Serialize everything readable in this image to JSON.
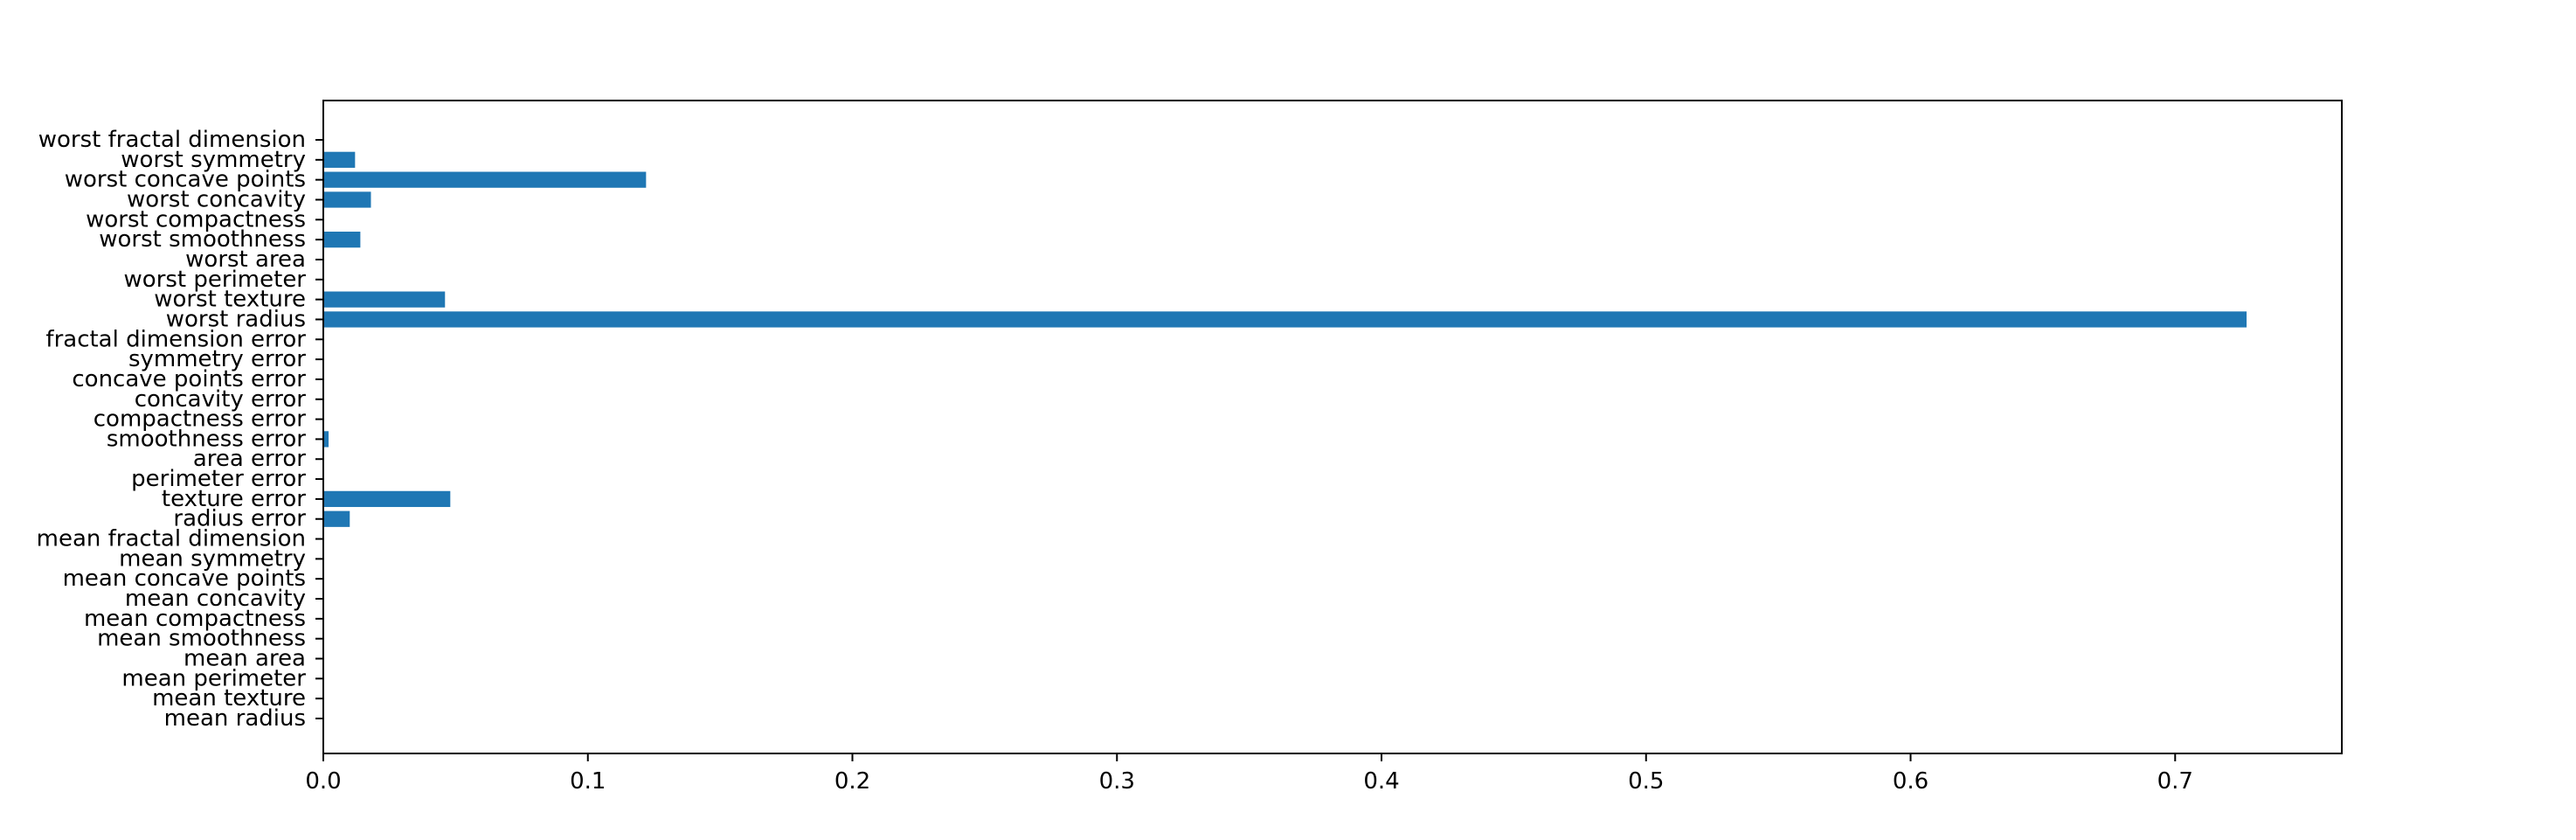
{
  "chart_data": {
    "type": "bar",
    "orientation": "horizontal",
    "title": "",
    "xlabel": "",
    "ylabel": "",
    "xlim": [
      0,
      0.763
    ],
    "grid": false,
    "bar_color": "#1f77b4",
    "x_ticks": [
      0.0,
      0.1,
      0.2,
      0.3,
      0.4,
      0.5,
      0.6,
      0.7
    ],
    "x_tick_labels": [
      "0.0",
      "0.1",
      "0.2",
      "0.3",
      "0.4",
      "0.5",
      "0.6",
      "0.7"
    ],
    "categories": [
      "mean radius",
      "mean texture",
      "mean perimeter",
      "mean area",
      "mean smoothness",
      "mean compactness",
      "mean concavity",
      "mean concave points",
      "mean symmetry",
      "mean fractal dimension",
      "radius error",
      "texture error",
      "perimeter error",
      "area error",
      "smoothness error",
      "compactness error",
      "concavity error",
      "concave points error",
      "symmetry error",
      "fractal dimension error",
      "worst radius",
      "worst texture",
      "worst perimeter",
      "worst area",
      "worst smoothness",
      "worst compactness",
      "worst concavity",
      "worst concave points",
      "worst symmetry",
      "worst fractal dimension"
    ],
    "values": [
      0,
      0,
      0,
      0,
      0,
      0,
      0,
      0,
      0,
      0,
      0.01,
      0.048,
      0,
      0,
      0.002,
      0,
      0,
      0,
      0,
      0,
      0.727,
      0.046,
      0,
      0,
      0.014,
      0,
      0.018,
      0.122,
      0.012,
      0
    ]
  }
}
